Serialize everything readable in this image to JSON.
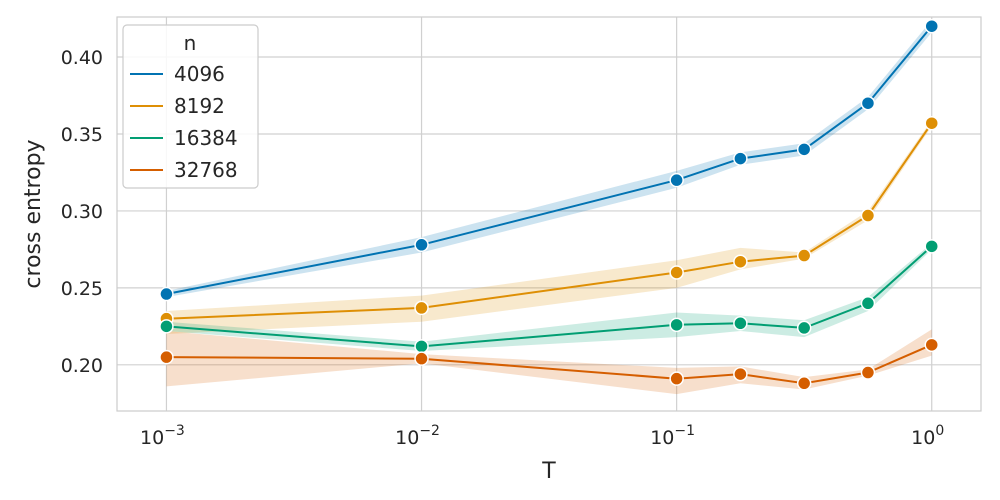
{
  "chart_data": {
    "type": "line",
    "xlabel": "T",
    "ylabel": "cross entropy",
    "xscale": "log",
    "xlim": [
      0.00064,
      1.56
    ],
    "ylim": [
      0.17,
      0.426
    ],
    "xticks": [
      {
        "value": 0.001,
        "base": "10",
        "exp": "−3"
      },
      {
        "value": 0.01,
        "base": "10",
        "exp": "−2"
      },
      {
        "value": 0.1,
        "base": "10",
        "exp": "−1"
      },
      {
        "value": 1,
        "base": "10",
        "exp": "0"
      }
    ],
    "yticks": [
      {
        "value": 0.2,
        "label": "0.20"
      },
      {
        "value": 0.25,
        "label": "0.25"
      },
      {
        "value": 0.3,
        "label": "0.30"
      },
      {
        "value": 0.35,
        "label": "0.35"
      },
      {
        "value": 0.4,
        "label": "0.40"
      }
    ],
    "grid": true,
    "legend": {
      "title": "n",
      "placement": "top-left"
    },
    "x": [
      0.001,
      0.01,
      0.1,
      0.1778,
      0.3162,
      0.5623,
      1.0
    ],
    "series": [
      {
        "name": "4096",
        "color": "#0173b2",
        "values": [
          0.246,
          0.278,
          0.32,
          0.334,
          0.34,
          0.37,
          0.42
        ],
        "lower": [
          0.244,
          0.273,
          0.315,
          0.33,
          0.336,
          0.366,
          0.416
        ],
        "upper": [
          0.248,
          0.283,
          0.326,
          0.338,
          0.344,
          0.374,
          0.424
        ]
      },
      {
        "name": "8192",
        "color": "#de8f05",
        "values": [
          0.23,
          0.237,
          0.26,
          0.267,
          0.271,
          0.297,
          0.357
        ],
        "lower": [
          0.22,
          0.228,
          0.25,
          0.262,
          0.269,
          0.294,
          0.355
        ],
        "upper": [
          0.235,
          0.245,
          0.268,
          0.276,
          0.273,
          0.3,
          0.359
        ]
      },
      {
        "name": "16384",
        "color": "#029e73",
        "values": [
          0.225,
          0.212,
          0.226,
          0.227,
          0.224,
          0.24,
          0.277
        ],
        "lower": [
          0.222,
          0.209,
          0.218,
          0.222,
          0.218,
          0.235,
          0.275
        ],
        "upper": [
          0.228,
          0.215,
          0.234,
          0.232,
          0.229,
          0.244,
          0.279
        ]
      },
      {
        "name": "32768",
        "color": "#d55e00",
        "values": [
          0.205,
          0.204,
          0.191,
          0.194,
          0.188,
          0.195,
          0.213
        ],
        "lower": [
          0.186,
          0.201,
          0.181,
          0.188,
          0.184,
          0.193,
          0.206
        ],
        "upper": [
          0.222,
          0.207,
          0.198,
          0.199,
          0.192,
          0.197,
          0.223
        ]
      }
    ]
  }
}
